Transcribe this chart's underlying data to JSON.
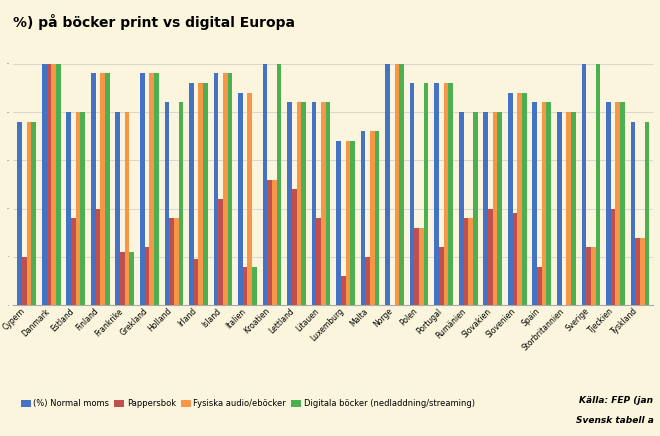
{
  "title": "%) på böcker print vs digital Europa",
  "background_color": "#FAF5DC",
  "countries": [
    "Cypern",
    "Danmark",
    "Estland",
    "Finland",
    "Frankrike",
    "Grekland",
    "Holland",
    "Irland",
    "Island",
    "Italien",
    "Kroatien",
    "Lettland",
    "Litauen",
    "Luxemburg",
    "Malta",
    "Norge",
    "Polen",
    "Portugal",
    "Rumänien",
    "Slovakien",
    "Slovenien",
    "Spain",
    "Storbritannien",
    "Sverige",
    "Tjeckien",
    "Tyskland"
  ],
  "normal_moms": [
    19,
    25,
    20,
    24,
    20,
    24,
    21,
    23,
    24,
    22,
    25,
    21,
    21,
    17,
    18,
    25,
    23,
    23,
    20,
    20,
    22,
    21,
    20,
    25,
    21,
    19
  ],
  "pappersbok": [
    5,
    25,
    9,
    10,
    5.5,
    6,
    9,
    4.8,
    11,
    4,
    13,
    12,
    9,
    3,
    5,
    0,
    8,
    6,
    9,
    10,
    9.5,
    4,
    0,
    6,
    10,
    7
  ],
  "fysiska_audio": [
    19,
    25,
    20,
    24,
    20,
    24,
    9,
    23,
    24,
    22,
    13,
    21,
    21,
    17,
    18,
    25,
    8,
    23,
    9,
    20,
    22,
    21,
    20,
    6,
    21,
    7
  ],
  "digitala": [
    19,
    25,
    20,
    24,
    5.5,
    24,
    21,
    23,
    24,
    4,
    25,
    21,
    21,
    17,
    18,
    25,
    23,
    23,
    20,
    20,
    22,
    21,
    20,
    25,
    21,
    19
  ],
  "colors": {
    "normal_moms": "#4472C4",
    "pappersbok": "#C0504D",
    "fysiska_audio": "#F79646",
    "digitala": "#4CAF50"
  },
  "legend_labels": [
    "(%) Normal moms",
    "Pappersbok",
    "Fysiska audio/eböcker",
    "Digitala böcker (nedladdning/streaming)"
  ],
  "source_text": "Källa: FEP (jan",
  "source_text2": "Svensk tabell a",
  "ylim": [
    0,
    28
  ],
  "grid_color": "#CCCCCC",
  "title_fontsize": 10,
  "tick_fontsize": 5.5,
  "legend_fontsize": 6.0
}
